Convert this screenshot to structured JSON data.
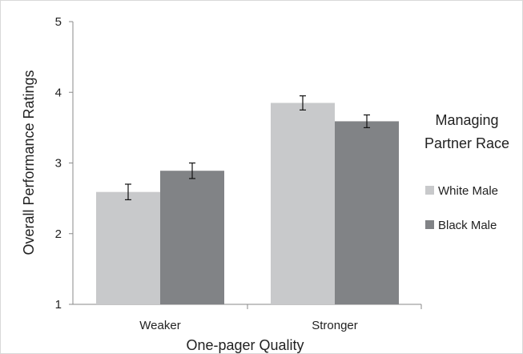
{
  "chart_data": {
    "type": "bar",
    "categories": [
      "Weaker",
      "Stronger"
    ],
    "series": [
      {
        "name": "White Male",
        "values": [
          2.59,
          3.85
        ],
        "error": [
          0.11,
          0.1
        ],
        "color": "#c8c9cb"
      },
      {
        "name": "Black Male",
        "values": [
          2.89,
          3.59
        ],
        "error": [
          0.11,
          0.09
        ],
        "color": "#818386"
      }
    ],
    "xlabel": "One-pager Quality",
    "ylabel": "Overall Performance Ratings",
    "ylim": [
      1,
      5
    ],
    "yticks": [
      "1",
      "2",
      "3",
      "4",
      "5"
    ],
    "legend": {
      "title_line1": "Managing",
      "title_line2": "Partner Race",
      "placement": "right"
    },
    "grid": false
  }
}
